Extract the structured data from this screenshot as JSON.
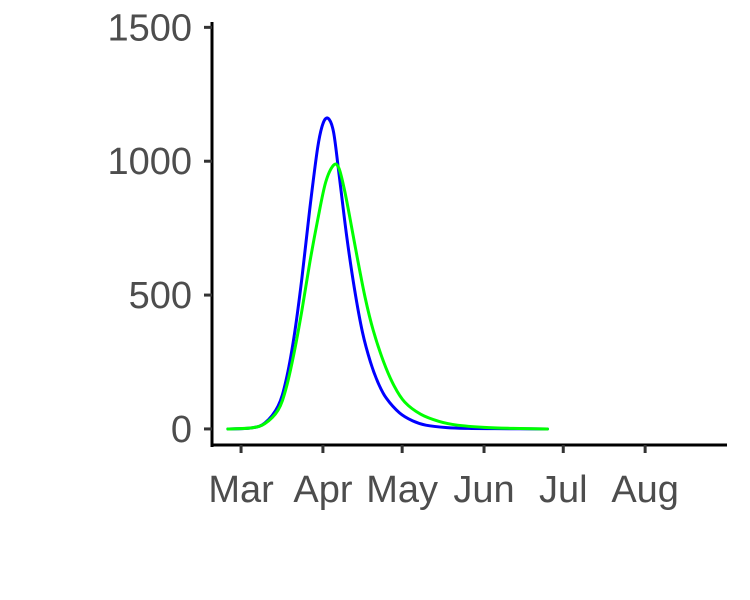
{
  "chart_data": {
    "type": "line",
    "title": "",
    "xlabel": "",
    "ylabel": "",
    "x_axis": {
      "type": "date",
      "range": [
        "2020-02-19",
        "2020-09-01"
      ],
      "ticks": [
        {
          "date": "2020-03-01",
          "label": "Mar"
        },
        {
          "date": "2020-04-01",
          "label": "Apr"
        },
        {
          "date": "2020-05-01",
          "label": "May"
        },
        {
          "date": "2020-06-01",
          "label": "Jun"
        },
        {
          "date": "2020-07-01",
          "label": "Jul"
        },
        {
          "date": "2020-08-01",
          "label": "Aug"
        }
      ]
    },
    "y_axis": {
      "range": [
        -60,
        1520
      ],
      "ticks": [
        {
          "value": 0,
          "label": "0"
        },
        {
          "value": 500,
          "label": "500"
        },
        {
          "value": 1000,
          "label": "1000"
        },
        {
          "value": 1500,
          "label": "1500"
        }
      ]
    },
    "grid": false,
    "legend": "none",
    "series": [
      {
        "color": "#0000ff",
        "points": [
          [
            "2020-02-25",
            0
          ],
          [
            "2020-03-05",
            4
          ],
          [
            "2020-03-10",
            22
          ],
          [
            "2020-03-15",
            85
          ],
          [
            "2020-03-18",
            180
          ],
          [
            "2020-03-21",
            340
          ],
          [
            "2020-03-24",
            560
          ],
          [
            "2020-03-27",
            820
          ],
          [
            "2020-03-30",
            1050
          ],
          [
            "2020-04-01",
            1140
          ],
          [
            "2020-04-03",
            1160
          ],
          [
            "2020-04-05",
            1110
          ],
          [
            "2020-04-07",
            960
          ],
          [
            "2020-04-10",
            720
          ],
          [
            "2020-04-13",
            520
          ],
          [
            "2020-04-16",
            360
          ],
          [
            "2020-04-19",
            250
          ],
          [
            "2020-04-22",
            170
          ],
          [
            "2020-04-25",
            115
          ],
          [
            "2020-04-30",
            60
          ],
          [
            "2020-05-05",
            30
          ],
          [
            "2020-05-10",
            14
          ],
          [
            "2020-05-18",
            5
          ],
          [
            "2020-05-26",
            2
          ],
          [
            "2020-06-05",
            1
          ],
          [
            "2020-06-25",
            0
          ]
        ]
      },
      {
        "color": "#00ff00",
        "points": [
          [
            "2020-02-25",
            0
          ],
          [
            "2020-03-05",
            4
          ],
          [
            "2020-03-10",
            20
          ],
          [
            "2020-03-15",
            70
          ],
          [
            "2020-03-18",
            150
          ],
          [
            "2020-03-21",
            280
          ],
          [
            "2020-03-24",
            440
          ],
          [
            "2020-03-27",
            620
          ],
          [
            "2020-03-30",
            780
          ],
          [
            "2020-04-02",
            920
          ],
          [
            "2020-04-05",
            985
          ],
          [
            "2020-04-07",
            975
          ],
          [
            "2020-04-09",
            900
          ],
          [
            "2020-04-11",
            800
          ],
          [
            "2020-04-14",
            640
          ],
          [
            "2020-04-17",
            490
          ],
          [
            "2020-04-20",
            370
          ],
          [
            "2020-04-24",
            250
          ],
          [
            "2020-04-28",
            160
          ],
          [
            "2020-05-02",
            100
          ],
          [
            "2020-05-08",
            55
          ],
          [
            "2020-05-15",
            28
          ],
          [
            "2020-05-22",
            14
          ],
          [
            "2020-06-01",
            6
          ],
          [
            "2020-06-12",
            2
          ],
          [
            "2020-06-25",
            0
          ]
        ]
      }
    ]
  }
}
